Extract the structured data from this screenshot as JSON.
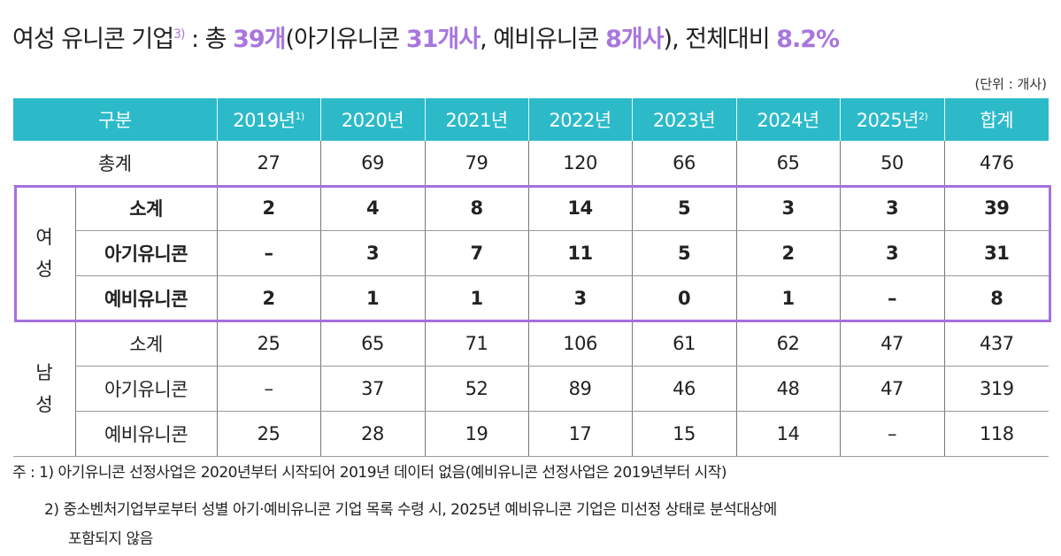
{
  "title": {
    "segments": [
      {
        "text": "여성 유니콘 기업",
        "highlight": false
      },
      {
        "text": "3)",
        "sup": true
      },
      {
        "text": " : 총 ",
        "highlight": false
      },
      {
        "text": "39개",
        "highlight": true
      },
      {
        "text": "(아기유니콘 ",
        "highlight": false
      },
      {
        "text": "31개사",
        "highlight": true
      },
      {
        "text": ", 예비유니콘 ",
        "highlight": false
      },
      {
        "text": "8개사",
        "highlight": true
      },
      {
        "text": "), 전체대비 ",
        "highlight": false
      },
      {
        "text": "8.2%",
        "highlight": true
      }
    ]
  },
  "unit": "(단위 : 개사)",
  "colors": {
    "header_bg": "#2cbac9",
    "highlight": "#a876de",
    "box_border": "#a670dc"
  },
  "table": {
    "headers": [
      {
        "label": "구분",
        "sup": ""
      },
      {
        "label": "2019년",
        "sup": "1)"
      },
      {
        "label": "2020년",
        "sup": ""
      },
      {
        "label": "2021년",
        "sup": ""
      },
      {
        "label": "2022년",
        "sup": ""
      },
      {
        "label": "2023년",
        "sup": ""
      },
      {
        "label": "2024년",
        "sup": ""
      },
      {
        "label": "2025년",
        "sup": "2)"
      },
      {
        "label": "합계",
        "sup": ""
      }
    ],
    "total_row": {
      "label": "총계",
      "values": [
        "27",
        "69",
        "79",
        "120",
        "66",
        "65",
        "50",
        "476"
      ]
    },
    "groups": [
      {
        "name": "여성",
        "key": "female",
        "rows": [
          {
            "label": "소계",
            "values": [
              "2",
              "4",
              "8",
              "14",
              "5",
              "3",
              "3",
              "39"
            ]
          },
          {
            "label": "아기유니콘",
            "values": [
              "–",
              "3",
              "7",
              "11",
              "5",
              "2",
              "3",
              "31"
            ]
          },
          {
            "label": "예비유니콘",
            "values": [
              "2",
              "1",
              "1",
              "3",
              "0",
              "1",
              "–",
              "8"
            ]
          }
        ]
      },
      {
        "name": "남성",
        "key": "male",
        "rows": [
          {
            "label": "소계",
            "values": [
              "25",
              "65",
              "71",
              "106",
              "61",
              "62",
              "47",
              "437"
            ]
          },
          {
            "label": "아기유니콘",
            "values": [
              "–",
              "37",
              "52",
              "89",
              "46",
              "48",
              "47",
              "319"
            ]
          },
          {
            "label": "예비유니콘",
            "values": [
              "25",
              "28",
              "19",
              "17",
              "15",
              "14",
              "–",
              "118"
            ]
          }
        ]
      }
    ]
  },
  "notes": [
    "주 : 1) 아기유니콘 선정사업은 2020년부터 시작되어 2019년 데이터 없음(예비유니콘 선정사업은 2019년부터 시작)",
    "2) 중소벤처기업부로부터 성별 아기·예비유니콘 기업 목록 수령 시, 2025년 예비유니콘 기업은 미선정 상태로 분석대상에",
    "포함되지 않음"
  ]
}
